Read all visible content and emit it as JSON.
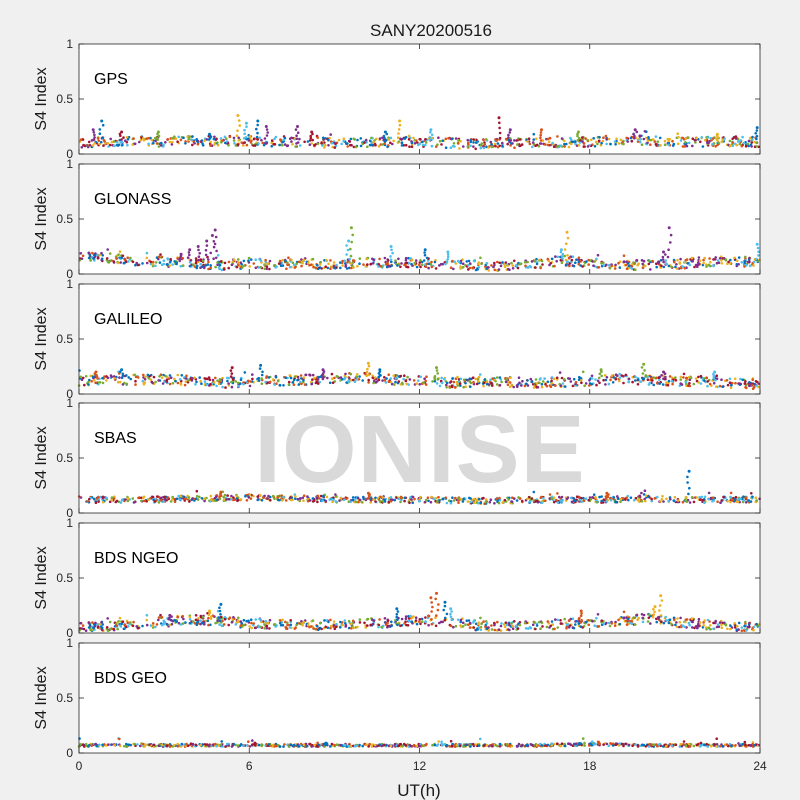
{
  "figure": {
    "title": "SANY20200516",
    "watermark": "IONISE",
    "xlabel": "UT(h)",
    "ylabel": "S4 Index",
    "colors": [
      "#0072BD",
      "#D95319",
      "#EDB120",
      "#7E2F8E",
      "#77AC30",
      "#4DBEEE",
      "#A2142F"
    ]
  },
  "chart_data": [
    {
      "type": "scatter",
      "name": "GPS",
      "title": "SANY20200516",
      "xlabel": "",
      "ylabel": "S4 Index",
      "xlim": [
        0,
        24
      ],
      "ylim": [
        0,
        1
      ],
      "xticks": [
        0,
        6,
        12,
        18,
        24
      ],
      "yticks": [
        0,
        0.5,
        1
      ],
      "ytick_labels": [
        "0",
        "0.5",
        "1"
      ],
      "grid": false,
      "baseline": [
        [
          0,
          0.1
        ],
        [
          1,
          0.11
        ],
        [
          2,
          0.12
        ],
        [
          3,
          0.11
        ],
        [
          4,
          0.12
        ],
        [
          5,
          0.12
        ],
        [
          6,
          0.12
        ],
        [
          7,
          0.11
        ],
        [
          8,
          0.11
        ],
        [
          9,
          0.1
        ],
        [
          10,
          0.1
        ],
        [
          11,
          0.11
        ],
        [
          12,
          0.11
        ],
        [
          13,
          0.1
        ],
        [
          14,
          0.09
        ],
        [
          15,
          0.1
        ],
        [
          16,
          0.1
        ],
        [
          17,
          0.1
        ],
        [
          18,
          0.11
        ],
        [
          19,
          0.13
        ],
        [
          20,
          0.12
        ],
        [
          21,
          0.11
        ],
        [
          22,
          0.11
        ],
        [
          23,
          0.11
        ],
        [
          24,
          0.11
        ]
      ],
      "points": [
        [
          0.8,
          0.3,
          0
        ],
        [
          0.5,
          0.22,
          3
        ],
        [
          1.5,
          0.2,
          6
        ],
        [
          2.8,
          0.2,
          4
        ],
        [
          4.6,
          0.18,
          0
        ],
        [
          5.6,
          0.35,
          2
        ],
        [
          5.9,
          0.28,
          5
        ],
        [
          6.3,
          0.3,
          0
        ],
        [
          6.6,
          0.25,
          3
        ],
        [
          7.7,
          0.25,
          3
        ],
        [
          8.2,
          0.2,
          6
        ],
        [
          10.8,
          0.2,
          0
        ],
        [
          11.3,
          0.3,
          2
        ],
        [
          12.4,
          0.22,
          5
        ],
        [
          14.8,
          0.33,
          6
        ],
        [
          15.2,
          0.22,
          3
        ],
        [
          16.3,
          0.22,
          1
        ],
        [
          17.6,
          0.2,
          4
        ],
        [
          19.6,
          0.22,
          3
        ],
        [
          22.5,
          0.18,
          2
        ],
        [
          23.9,
          0.24,
          0
        ]
      ]
    },
    {
      "type": "scatter",
      "name": "GLONASS",
      "xlim": [
        0,
        24
      ],
      "ylim": [
        0,
        1
      ],
      "yticks": [
        0,
        0.5,
        1
      ],
      "ytick_labels": [
        "0",
        "0.5",
        "1"
      ],
      "ylabel": "S4 Index",
      "grid": false,
      "baseline": [
        [
          0,
          0.16
        ],
        [
          1,
          0.15
        ],
        [
          2,
          0.12
        ],
        [
          3,
          0.11
        ],
        [
          4,
          0.1
        ],
        [
          5,
          0.08
        ],
        [
          6,
          0.1
        ],
        [
          7,
          0.08
        ],
        [
          8,
          0.1
        ],
        [
          9,
          0.08
        ],
        [
          10,
          0.11
        ],
        [
          11,
          0.1
        ],
        [
          12,
          0.1
        ],
        [
          13,
          0.09
        ],
        [
          14,
          0.08
        ],
        [
          15,
          0.07
        ],
        [
          16,
          0.09
        ],
        [
          17,
          0.12
        ],
        [
          18,
          0.11
        ],
        [
          19,
          0.09
        ],
        [
          20,
          0.08
        ],
        [
          21,
          0.09
        ],
        [
          22,
          0.11
        ],
        [
          23,
          0.12
        ],
        [
          24,
          0.1
        ]
      ],
      "points": [
        [
          3.6,
          0.18,
          3
        ],
        [
          3.9,
          0.22,
          3
        ],
        [
          4.2,
          0.25,
          3
        ],
        [
          4.5,
          0.3,
          3
        ],
        [
          4.7,
          0.35,
          3
        ],
        [
          4.8,
          0.4,
          3
        ],
        [
          9.6,
          0.42,
          4
        ],
        [
          9.5,
          0.3,
          5
        ],
        [
          11.0,
          0.25,
          5
        ],
        [
          12.2,
          0.22,
          0
        ],
        [
          13.0,
          0.2,
          5
        ],
        [
          17.2,
          0.38,
          2
        ],
        [
          17.0,
          0.22,
          5
        ],
        [
          20.6,
          0.2,
          3
        ],
        [
          20.8,
          0.42,
          3
        ],
        [
          23.9,
          0.27,
          5
        ]
      ]
    },
    {
      "type": "scatter",
      "name": "GALILEO",
      "xlim": [
        0,
        24
      ],
      "ylim": [
        0,
        1
      ],
      "yticks": [
        0,
        0.5,
        1
      ],
      "ytick_labels": [
        "0",
        "0.5",
        "1"
      ],
      "ylabel": "S4 Index",
      "grid": false,
      "baseline": [
        [
          0,
          0.12
        ],
        [
          1,
          0.13
        ],
        [
          2,
          0.13
        ],
        [
          3,
          0.14
        ],
        [
          4,
          0.12
        ],
        [
          5,
          0.1
        ],
        [
          6,
          0.11
        ],
        [
          7,
          0.12
        ],
        [
          8,
          0.13
        ],
        [
          9,
          0.14
        ],
        [
          10,
          0.15
        ],
        [
          11,
          0.13
        ],
        [
          12,
          0.12
        ],
        [
          13,
          0.1
        ],
        [
          14,
          0.11
        ],
        [
          15,
          0.11
        ],
        [
          16,
          0.1
        ],
        [
          17,
          0.11
        ],
        [
          18,
          0.12
        ],
        [
          19,
          0.14
        ],
        [
          20,
          0.13
        ],
        [
          21,
          0.12
        ],
        [
          22,
          0.11
        ],
        [
          23,
          0.1
        ],
        [
          24,
          0.09
        ]
      ],
      "points": [
        [
          0.6,
          0.2,
          1
        ],
        [
          1.5,
          0.22,
          0
        ],
        [
          5.4,
          0.24,
          6
        ],
        [
          6.4,
          0.26,
          0
        ],
        [
          8.6,
          0.22,
          3
        ],
        [
          10.2,
          0.28,
          2
        ],
        [
          10.6,
          0.22,
          0
        ],
        [
          12.6,
          0.24,
          4
        ],
        [
          18.4,
          0.22,
          4
        ],
        [
          19.9,
          0.27,
          4
        ],
        [
          20.6,
          0.2,
          3
        ],
        [
          22.4,
          0.2,
          5
        ]
      ]
    },
    {
      "type": "scatter",
      "name": "SBAS",
      "xlim": [
        0,
        24
      ],
      "ylim": [
        0,
        1
      ],
      "yticks": [
        0,
        0.5,
        1
      ],
      "ytick_labels": [
        "0",
        "0.5",
        "1"
      ],
      "ylabel": "S4 Index",
      "grid": false,
      "baseline": [
        [
          0,
          0.12
        ],
        [
          2,
          0.12
        ],
        [
          4,
          0.13
        ],
        [
          6,
          0.14
        ],
        [
          8,
          0.13
        ],
        [
          10,
          0.12
        ],
        [
          12,
          0.12
        ],
        [
          14,
          0.11
        ],
        [
          16,
          0.12
        ],
        [
          18,
          0.12
        ],
        [
          20,
          0.13
        ],
        [
          22,
          0.12
        ],
        [
          24,
          0.12
        ]
      ],
      "points": [
        [
          21.5,
          0.38,
          0
        ],
        [
          5.0,
          0.19,
          1
        ],
        [
          10.2,
          0.18,
          1
        ],
        [
          18.6,
          0.18,
          1
        ]
      ]
    },
    {
      "type": "scatter",
      "name": "BDS NGEO",
      "xlim": [
        0,
        24
      ],
      "ylim": [
        0,
        1
      ],
      "yticks": [
        0,
        0.5,
        1
      ],
      "ytick_labels": [
        "0",
        "0.5",
        "1"
      ],
      "ylabel": "S4 Index",
      "grid": false,
      "baseline": [
        [
          0,
          0.06
        ],
        [
          1,
          0.06
        ],
        [
          2,
          0.08
        ],
        [
          3,
          0.1
        ],
        [
          4,
          0.12
        ],
        [
          5,
          0.11
        ],
        [
          6,
          0.09
        ],
        [
          7,
          0.08
        ],
        [
          8,
          0.07
        ],
        [
          9,
          0.08
        ],
        [
          10,
          0.09
        ],
        [
          11,
          0.09
        ],
        [
          12,
          0.12
        ],
        [
          13,
          0.1
        ],
        [
          14,
          0.07
        ],
        [
          15,
          0.06
        ],
        [
          16,
          0.07
        ],
        [
          17,
          0.08
        ],
        [
          18,
          0.1
        ],
        [
          19,
          0.11
        ],
        [
          20,
          0.13
        ],
        [
          21,
          0.1
        ],
        [
          22,
          0.08
        ],
        [
          23,
          0.06
        ],
        [
          24,
          0.05
        ]
      ],
      "points": [
        [
          3.2,
          0.16,
          3
        ],
        [
          4.6,
          0.2,
          2
        ],
        [
          5.0,
          0.26,
          0
        ],
        [
          11.2,
          0.22,
          0
        ],
        [
          12.4,
          0.32,
          1
        ],
        [
          12.6,
          0.36,
          1
        ],
        [
          12.9,
          0.28,
          0
        ],
        [
          13.1,
          0.22,
          5
        ],
        [
          17.7,
          0.2,
          1
        ],
        [
          20.5,
          0.34,
          2
        ],
        [
          20.3,
          0.24,
          2
        ]
      ]
    },
    {
      "type": "scatter",
      "name": "BDS GEO",
      "xlabel": "UT(h)",
      "xlim": [
        0,
        24
      ],
      "ylim": [
        0,
        1
      ],
      "xticks": [
        0,
        6,
        12,
        18,
        24
      ],
      "xtick_labels": [
        "0",
        "6",
        "12",
        "18",
        "24"
      ],
      "yticks": [
        0,
        0.5,
        1
      ],
      "ytick_labels": [
        "0",
        "0.5",
        "1"
      ],
      "ylabel": "S4 Index",
      "grid": false,
      "baseline": [
        [
          0,
          0.07
        ],
        [
          4,
          0.07
        ],
        [
          8,
          0.07
        ],
        [
          12,
          0.07
        ],
        [
          16,
          0.07
        ],
        [
          18,
          0.08
        ],
        [
          20,
          0.07
        ],
        [
          24,
          0.07
        ]
      ],
      "points": [
        [
          8.7,
          0.09,
          0
        ],
        [
          18.3,
          0.1,
          1
        ],
        [
          6.2,
          0.09,
          6
        ]
      ]
    }
  ]
}
